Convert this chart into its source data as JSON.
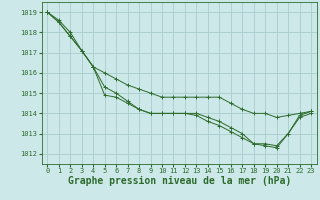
{
  "bg_color": "#cce8e8",
  "grid_color": "#aacccc",
  "line_color": "#2d6b2d",
  "marker_color": "#2d6b2d",
  "xlabel": "Graphe pression niveau de la mer (hPa)",
  "xlabel_fontsize": 7,
  "ylim": [
    1011.5,
    1019.5
  ],
  "xlim": [
    -0.5,
    23.5
  ],
  "yticks": [
    1012,
    1013,
    1014,
    1015,
    1016,
    1017,
    1018,
    1019
  ],
  "xticks": [
    0,
    1,
    2,
    3,
    4,
    5,
    6,
    7,
    8,
    9,
    10,
    11,
    12,
    13,
    14,
    15,
    16,
    17,
    18,
    19,
    20,
    21,
    22,
    23
  ],
  "series": [
    [
      1019.0,
      1018.6,
      1018.0,
      1017.1,
      1016.3,
      1016.0,
      1015.7,
      1015.4,
      1015.2,
      1015.0,
      1014.8,
      1014.8,
      1014.8,
      1014.8,
      1014.8,
      1014.8,
      1014.5,
      1014.2,
      1014.0,
      1014.0,
      1013.8,
      1013.9,
      1014.0,
      1014.1
    ],
    [
      1019.0,
      1018.5,
      1017.8,
      1017.1,
      1016.3,
      1015.3,
      1015.0,
      1014.6,
      1014.2,
      1014.0,
      1014.0,
      1014.0,
      1014.0,
      1014.0,
      1013.8,
      1013.6,
      1013.3,
      1013.0,
      1012.5,
      1012.5,
      1012.4,
      1013.0,
      1013.8,
      1014.0
    ],
    [
      1019.0,
      1018.5,
      1017.8,
      1017.1,
      1016.3,
      1014.9,
      1014.8,
      1014.5,
      1014.2,
      1014.0,
      1014.0,
      1014.0,
      1014.0,
      1013.9,
      1013.6,
      1013.4,
      1013.1,
      1012.8,
      1012.5,
      1012.4,
      1012.3,
      1013.0,
      1013.9,
      1014.1
    ]
  ]
}
